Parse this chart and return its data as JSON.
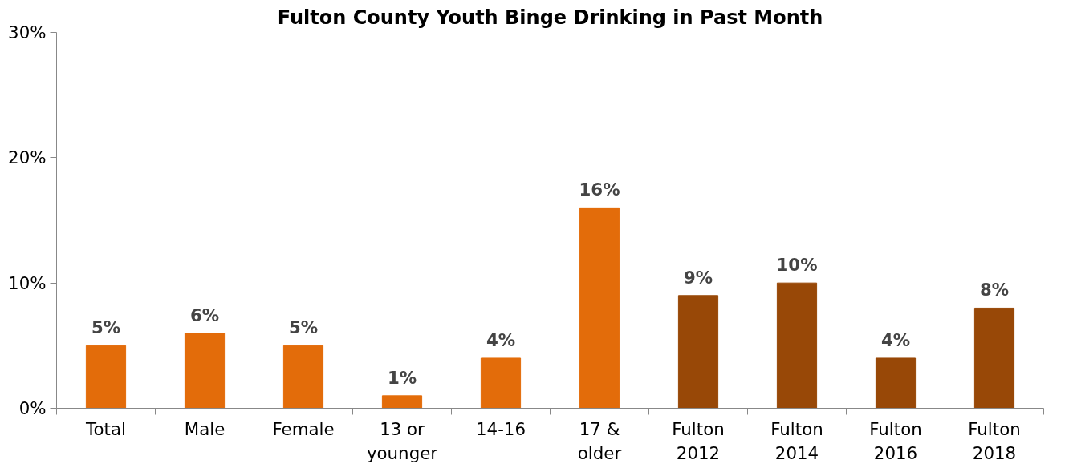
{
  "chart_data": {
    "type": "bar",
    "title": "Fulton County Youth Binge Drinking in Past Month",
    "categories": [
      "Total",
      "Male",
      "Female",
      "13 or younger",
      "14-16",
      "17 & older",
      "Fulton 2012",
      "Fulton 2014",
      "Fulton 2016",
      "Fulton 2018"
    ],
    "values": [
      5,
      6,
      5,
      1,
      4,
      16,
      9,
      10,
      4,
      8
    ],
    "colors": [
      "#e36c0a",
      "#e36c0a",
      "#e36c0a",
      "#e36c0a",
      "#e36c0a",
      "#e36c0a",
      "#984807",
      "#984807",
      "#984807",
      "#984807"
    ],
    "ylim": [
      0,
      30
    ],
    "yticks": [
      {
        "value": 0,
        "label": "0%"
      },
      {
        "value": 10,
        "label": "10%"
      },
      {
        "value": 20,
        "label": "20%"
      },
      {
        "value": 30,
        "label": "30%"
      }
    ],
    "value_labels": [
      "5%",
      "6%",
      "5%",
      "1%",
      "4%",
      "16%",
      "9%",
      "10%",
      "4%",
      "8%"
    ],
    "grid": false
  }
}
